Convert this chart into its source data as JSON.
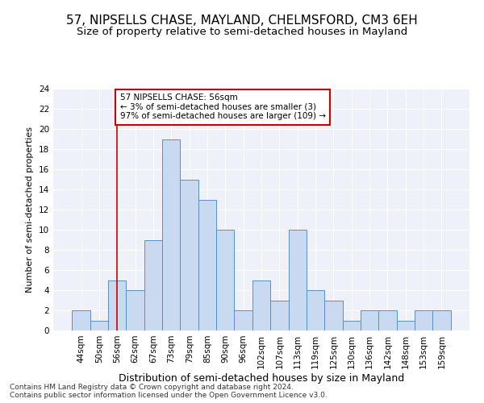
{
  "title": "57, NIPSELLS CHASE, MAYLAND, CHELMSFORD, CM3 6EH",
  "subtitle": "Size of property relative to semi-detached houses in Mayland",
  "xlabel": "Distribution of semi-detached houses by size in Mayland",
  "ylabel": "Number of semi-detached properties",
  "categories": [
    "44sqm",
    "50sqm",
    "56sqm",
    "62sqm",
    "67sqm",
    "73sqm",
    "79sqm",
    "85sqm",
    "90sqm",
    "96sqm",
    "102sqm",
    "107sqm",
    "113sqm",
    "119sqm",
    "125sqm",
    "130sqm",
    "136sqm",
    "142sqm",
    "148sqm",
    "153sqm",
    "159sqm"
  ],
  "values": [
    2,
    1,
    5,
    4,
    9,
    19,
    15,
    13,
    10,
    2,
    5,
    3,
    10,
    4,
    3,
    1,
    2,
    2,
    1,
    2,
    2
  ],
  "bar_color": "#c9d9f0",
  "bar_edge_color": "#5b8fc9",
  "highlight_index": 2,
  "highlight_line_color": "#cc0000",
  "ylim": [
    0,
    24
  ],
  "yticks": [
    0,
    2,
    4,
    6,
    8,
    10,
    12,
    14,
    16,
    18,
    20,
    22,
    24
  ],
  "annotation_text": "57 NIPSELLS CHASE: 56sqm\n← 3% of semi-detached houses are smaller (3)\n97% of semi-detached houses are larger (109) →",
  "annotation_box_color": "#ffffff",
  "annotation_box_edge_color": "#cc0000",
  "footer_line1": "Contains HM Land Registry data © Crown copyright and database right 2024.",
  "footer_line2": "Contains public sector information licensed under the Open Government Licence v3.0.",
  "background_color": "#eef2f8",
  "title_fontsize": 11,
  "subtitle_fontsize": 9.5,
  "xlabel_fontsize": 9,
  "ylabel_fontsize": 8,
  "tick_fontsize": 7.5,
  "annotation_fontsize": 7.5,
  "footer_fontsize": 6.5
}
